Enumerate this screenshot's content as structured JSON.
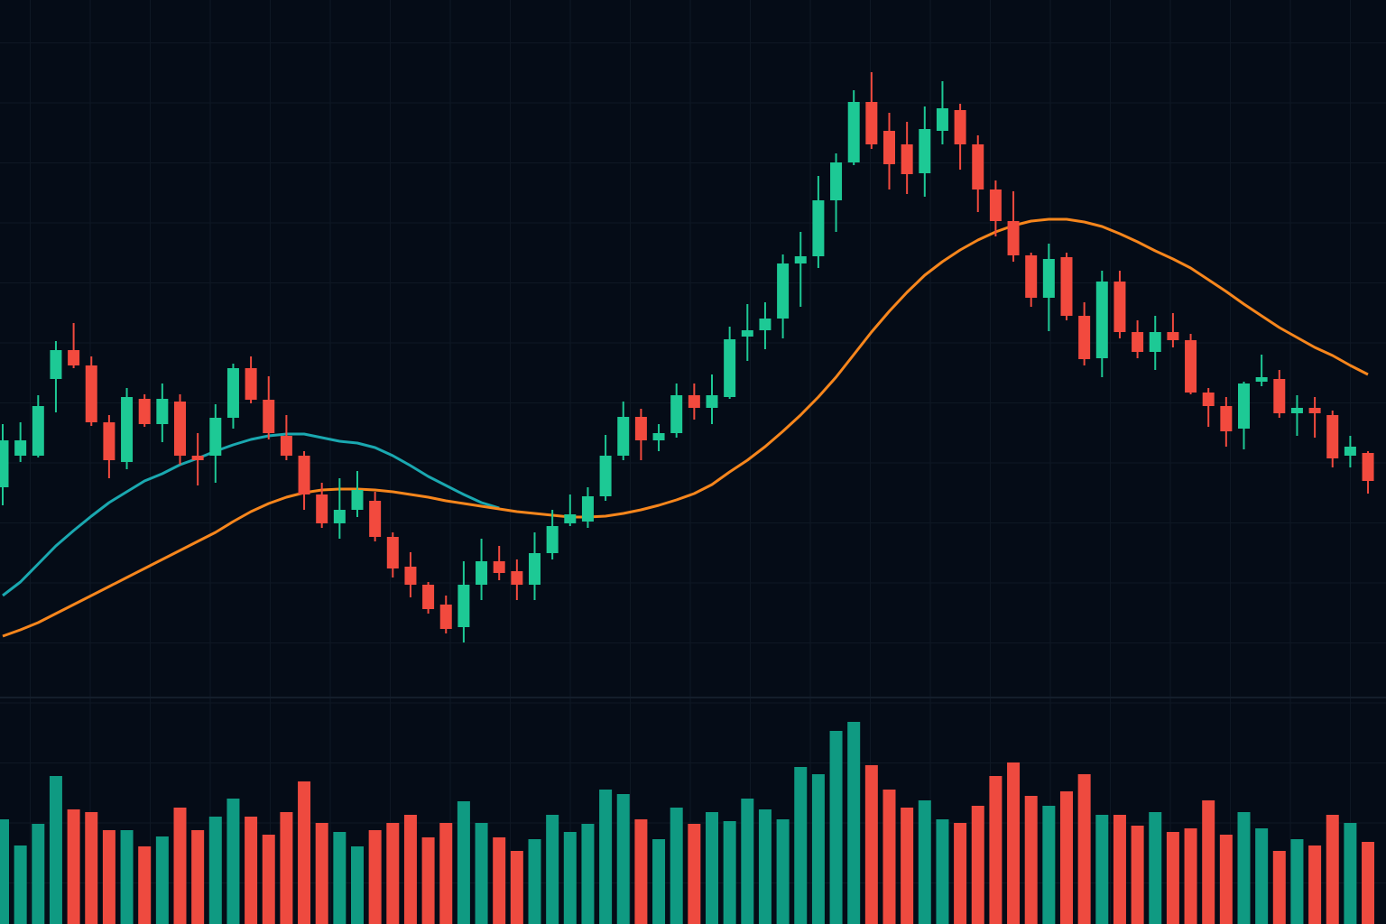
{
  "chart_data": {
    "type": "candlestick",
    "ylim": [
      0,
      770
    ],
    "grid": true,
    "up_color": "#1dc995",
    "down_color": "#f24a3e",
    "open": [
      230,
      265,
      265,
      350,
      382,
      365,
      302,
      258,
      328,
      300,
      325,
      265,
      265,
      307,
      362,
      327,
      287,
      265,
      222,
      190,
      205,
      215,
      175,
      142,
      122,
      100,
      75,
      122,
      148,
      137,
      122,
      157,
      190,
      192,
      220,
      265,
      308,
      282,
      290,
      332,
      318,
      330,
      397,
      404,
      417,
      478,
      486,
      548,
      590,
      657,
      625,
      610,
      578,
      625,
      648,
      610,
      560,
      525,
      487,
      440,
      485,
      420,
      373,
      458,
      402,
      380,
      402,
      393,
      335,
      320,
      295,
      347,
      350,
      312,
      318,
      310,
      265,
      268
    ],
    "high": [
      300,
      302,
      332,
      392,
      412,
      375,
      310,
      340,
      333,
      345,
      333,
      290,
      322,
      367,
      375,
      353,
      310,
      270,
      235,
      240,
      248,
      225,
      180,
      158,
      125,
      110,
      148,
      173,
      165,
      150,
      180,
      205,
      222,
      230,
      288,
      325,
      317,
      300,
      345,
      345,
      355,
      408,
      433,
      435,
      488,
      513,
      575,
      600,
      670,
      690,
      645,
      635,
      652,
      680,
      655,
      620,
      570,
      558,
      490,
      500,
      490,
      435,
      470,
      470,
      415,
      420,
      423,
      400,
      340,
      330,
      347,
      377,
      360,
      332,
      330,
      315,
      287,
      270
    ],
    "low": [
      210,
      258,
      263,
      313,
      362,
      298,
      240,
      250,
      297,
      280,
      255,
      232,
      235,
      295,
      323,
      283,
      260,
      205,
      185,
      173,
      197,
      170,
      130,
      108,
      90,
      68,
      58,
      105,
      127,
      105,
      105,
      150,
      187,
      185,
      215,
      260,
      260,
      270,
      285,
      305,
      300,
      328,
      370,
      383,
      395,
      430,
      473,
      513,
      587,
      605,
      560,
      555,
      552,
      610,
      582,
      535,
      508,
      480,
      430,
      403,
      415,
      365,
      352,
      395,
      373,
      360,
      385,
      333,
      297,
      275,
      272,
      342,
      307,
      287,
      285,
      252,
      252,
      223
    ],
    "close": [
      282,
      282,
      320,
      382,
      365,
      302,
      260,
      330,
      300,
      328,
      265,
      260,
      307,
      362,
      327,
      290,
      265,
      222,
      190,
      205,
      227,
      175,
      140,
      122,
      95,
      73,
      122,
      148,
      135,
      122,
      157,
      187,
      200,
      220,
      265,
      308,
      282,
      290,
      332,
      318,
      332,
      394,
      404,
      417,
      478,
      486,
      548,
      590,
      657,
      610,
      588,
      577,
      627,
      650,
      610,
      560,
      525,
      487,
      440,
      483,
      420,
      372,
      458,
      402,
      380,
      402,
      393,
      335,
      320,
      292,
      345,
      352,
      312,
      318,
      312,
      262,
      275,
      237
    ],
    "moving_averages": [
      {
        "color": "#1aa8b0",
        "values": [
          110,
          125,
          145,
          165,
          182,
          198,
          213,
          225,
          237,
          245,
          255,
          262,
          270,
          277,
          283,
          287,
          289,
          289,
          285,
          281,
          279,
          274,
          265,
          254,
          242,
          232,
          222,
          213,
          207,
          null,
          null,
          null,
          null,
          null,
          null,
          null,
          null,
          null,
          null,
          null,
          null,
          null,
          null,
          null,
          null,
          null,
          null,
          null,
          null,
          null,
          null,
          null,
          null,
          null,
          null,
          null,
          null,
          null,
          null,
          null,
          null,
          null,
          null,
          null,
          null,
          null,
          null,
          null,
          null,
          null,
          null,
          null,
          null,
          null,
          null,
          null,
          null,
          null
        ]
      },
      {
        "color": "#f7861c",
        "values": [
          65,
          72,
          80,
          90,
          100,
          110,
          120,
          130,
          140,
          150,
          160,
          170,
          180,
          192,
          203,
          212,
          219,
          224,
          227,
          228,
          228,
          227,
          225,
          222,
          219,
          215,
          212,
          209,
          206,
          203,
          201,
          199,
          197,
          197,
          198,
          201,
          205,
          210,
          216,
          223,
          233,
          247,
          260,
          275,
          292,
          310,
          330,
          352,
          377,
          402,
          425,
          446,
          465,
          480,
          493,
          504,
          513,
          520,
          525,
          527,
          527,
          524,
          519,
          511,
          502,
          492,
          483,
          473,
          460,
          447,
          433,
          420,
          407,
          396,
          385,
          376,
          365,
          355
        ]
      }
    ],
    "volume": {
      "type": "bar",
      "ylim": [
        0,
        250
      ],
      "up_color": "#0f9a82",
      "down_color": "#ee4a3f",
      "values": [
        116,
        87,
        111,
        164,
        127,
        124,
        104,
        104,
        86,
        97,
        129,
        104,
        119,
        139,
        119,
        99,
        124,
        158,
        112,
        102,
        86,
        104,
        112,
        121,
        96,
        112,
        136,
        112,
        96,
        81,
        94,
        121,
        102,
        111,
        149,
        144,
        116,
        94,
        129,
        111,
        124,
        114,
        139,
        127,
        116,
        174,
        166,
        214,
        224,
        176,
        149,
        129,
        137,
        116,
        112,
        131,
        164,
        179,
        142,
        131,
        147,
        166,
        121,
        121,
        109,
        124,
        102,
        106,
        137,
        99,
        124,
        106,
        81,
        94,
        87,
        121,
        112,
        91
      ]
    }
  }
}
